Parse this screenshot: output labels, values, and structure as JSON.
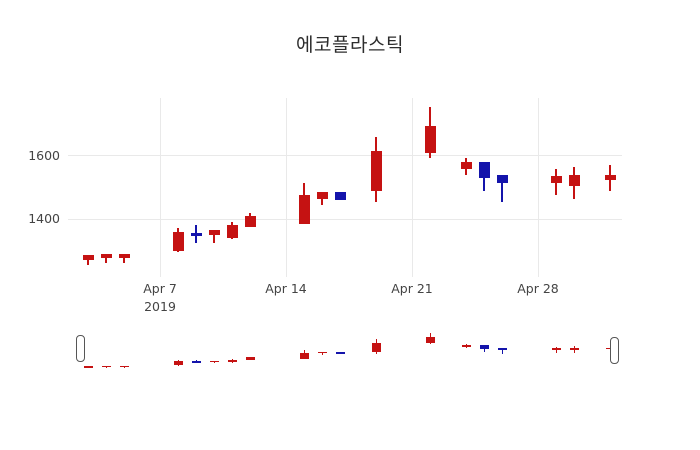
{
  "title": "에코플라스틱",
  "chart_data": {
    "type": "candlestick",
    "title": "에코플라스틱",
    "xlabel": "",
    "ylabel": "",
    "grid": true,
    "legend": "none",
    "y_ticks": [
      1400,
      1600
    ],
    "y_tick_labels": [
      "1400",
      "1600"
    ],
    "ylim": [
      1216,
      1784
    ],
    "x_ticks": [
      {
        "label": "Apr 7",
        "day": 4,
        "year_label": "2019"
      },
      {
        "label": "Apr 14",
        "day": 11,
        "year_label": ""
      },
      {
        "label": "Apr 21",
        "day": 18,
        "year_label": ""
      },
      {
        "label": "Apr 28",
        "day": 25,
        "year_label": ""
      }
    ],
    "up_color": "#c51212",
    "down_color": "#1414ab",
    "rangeslider": {
      "visible": true,
      "ylim": [
        1255,
        1755
      ]
    },
    "series": [
      {
        "date": "2019-04-03",
        "day": 0,
        "open": 1270,
        "high": 1285,
        "low": 1255,
        "close": 1285
      },
      {
        "date": "2019-04-04",
        "day": 1,
        "open": 1275,
        "high": 1290,
        "low": 1260,
        "close": 1290
      },
      {
        "date": "2019-04-05",
        "day": 2,
        "open": 1275,
        "high": 1290,
        "low": 1260,
        "close": 1290
      },
      {
        "date": "2019-04-08",
        "day": 5,
        "open": 1300,
        "high": 1370,
        "low": 1295,
        "close": 1360
      },
      {
        "date": "2019-04-09",
        "day": 6,
        "open": 1355,
        "high": 1380,
        "low": 1325,
        "close": 1345
      },
      {
        "date": "2019-04-10",
        "day": 7,
        "open": 1350,
        "high": 1365,
        "low": 1325,
        "close": 1365
      },
      {
        "date": "2019-04-11",
        "day": 8,
        "open": 1340,
        "high": 1390,
        "low": 1335,
        "close": 1380
      },
      {
        "date": "2019-04-12",
        "day": 9,
        "open": 1375,
        "high": 1420,
        "low": 1375,
        "close": 1410
      },
      {
        "date": "2019-04-15",
        "day": 12,
        "open": 1385,
        "high": 1515,
        "low": 1385,
        "close": 1475
      },
      {
        "date": "2019-04-16",
        "day": 13,
        "open": 1465,
        "high": 1485,
        "low": 1445,
        "close": 1485
      },
      {
        "date": "2019-04-17",
        "day": 14,
        "open": 1485,
        "high": 1485,
        "low": 1460,
        "close": 1460
      },
      {
        "date": "2019-04-19",
        "day": 16,
        "open": 1490,
        "high": 1660,
        "low": 1455,
        "close": 1615
      },
      {
        "date": "2019-04-22",
        "day": 19,
        "open": 1610,
        "high": 1755,
        "low": 1595,
        "close": 1695
      },
      {
        "date": "2019-04-24",
        "day": 21,
        "open": 1560,
        "high": 1595,
        "low": 1540,
        "close": 1580
      },
      {
        "date": "2019-04-25",
        "day": 22,
        "open": 1580,
        "high": 1580,
        "low": 1490,
        "close": 1530
      },
      {
        "date": "2019-04-26",
        "day": 23,
        "open": 1540,
        "high": 1540,
        "low": 1455,
        "close": 1515
      },
      {
        "date": "2019-04-29",
        "day": 26,
        "open": 1515,
        "high": 1560,
        "low": 1475,
        "close": 1535
      },
      {
        "date": "2019-04-30",
        "day": 27,
        "open": 1505,
        "high": 1565,
        "low": 1465,
        "close": 1540
      },
      {
        "date": "2019-05-02",
        "day": 29,
        "open": 1525,
        "high": 1570,
        "low": 1490,
        "close": 1540
      }
    ]
  }
}
